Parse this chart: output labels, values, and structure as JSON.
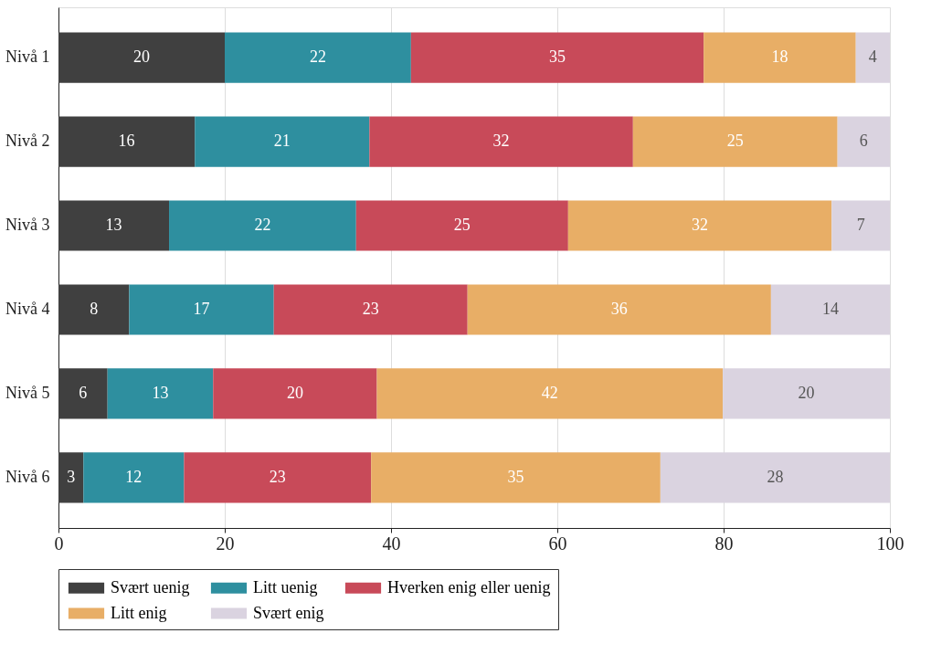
{
  "chart_data": {
    "type": "bar",
    "orientation": "horizontal",
    "stacked": true,
    "categories": [
      "Nivå 1",
      "Nivå 2",
      "Nivå 3",
      "Nivå 4",
      "Nivå 5",
      "Nivå 6"
    ],
    "series": [
      {
        "name": "Svært uenig",
        "color": "#404040",
        "values": [
          20.0,
          16.4,
          13.3,
          8.5,
          5.9,
          3.0
        ],
        "value_labels": [
          "20",
          "16",
          "13",
          "8",
          "6",
          "3"
        ]
      },
      {
        "name": "Litt uenig",
        "color": "#2e8f9f",
        "values": [
          22.4,
          21.0,
          22.5,
          17.4,
          12.7,
          12.1
        ],
        "value_labels": [
          "22",
          "21",
          "22",
          "17",
          "13",
          "12"
        ]
      },
      {
        "name": "Hverken enig eller uenig",
        "color": "#c84a59",
        "values": [
          35.2,
          31.7,
          25.5,
          23.3,
          19.7,
          22.5
        ],
        "value_labels": [
          "35",
          "32",
          "25",
          "23",
          "20",
          "23"
        ]
      },
      {
        "name": "Litt enig",
        "color": "#e8ae66",
        "values": [
          18.3,
          24.6,
          31.7,
          36.5,
          41.6,
          34.8
        ],
        "value_labels": [
          "18",
          "25",
          "32",
          "36",
          "42",
          "35"
        ]
      },
      {
        "name": "Svært enig",
        "color": "#dad3e0",
        "values": [
          4.1,
          6.3,
          7.0,
          14.3,
          20.1,
          27.6
        ],
        "value_labels": [
          "4",
          "6",
          "7",
          "14",
          "20",
          "28"
        ]
      }
    ],
    "xlim": [
      0,
      100
    ],
    "xticks": [
      0,
      20,
      40,
      60,
      80,
      100
    ],
    "grid": "x",
    "legend": "bottom"
  }
}
